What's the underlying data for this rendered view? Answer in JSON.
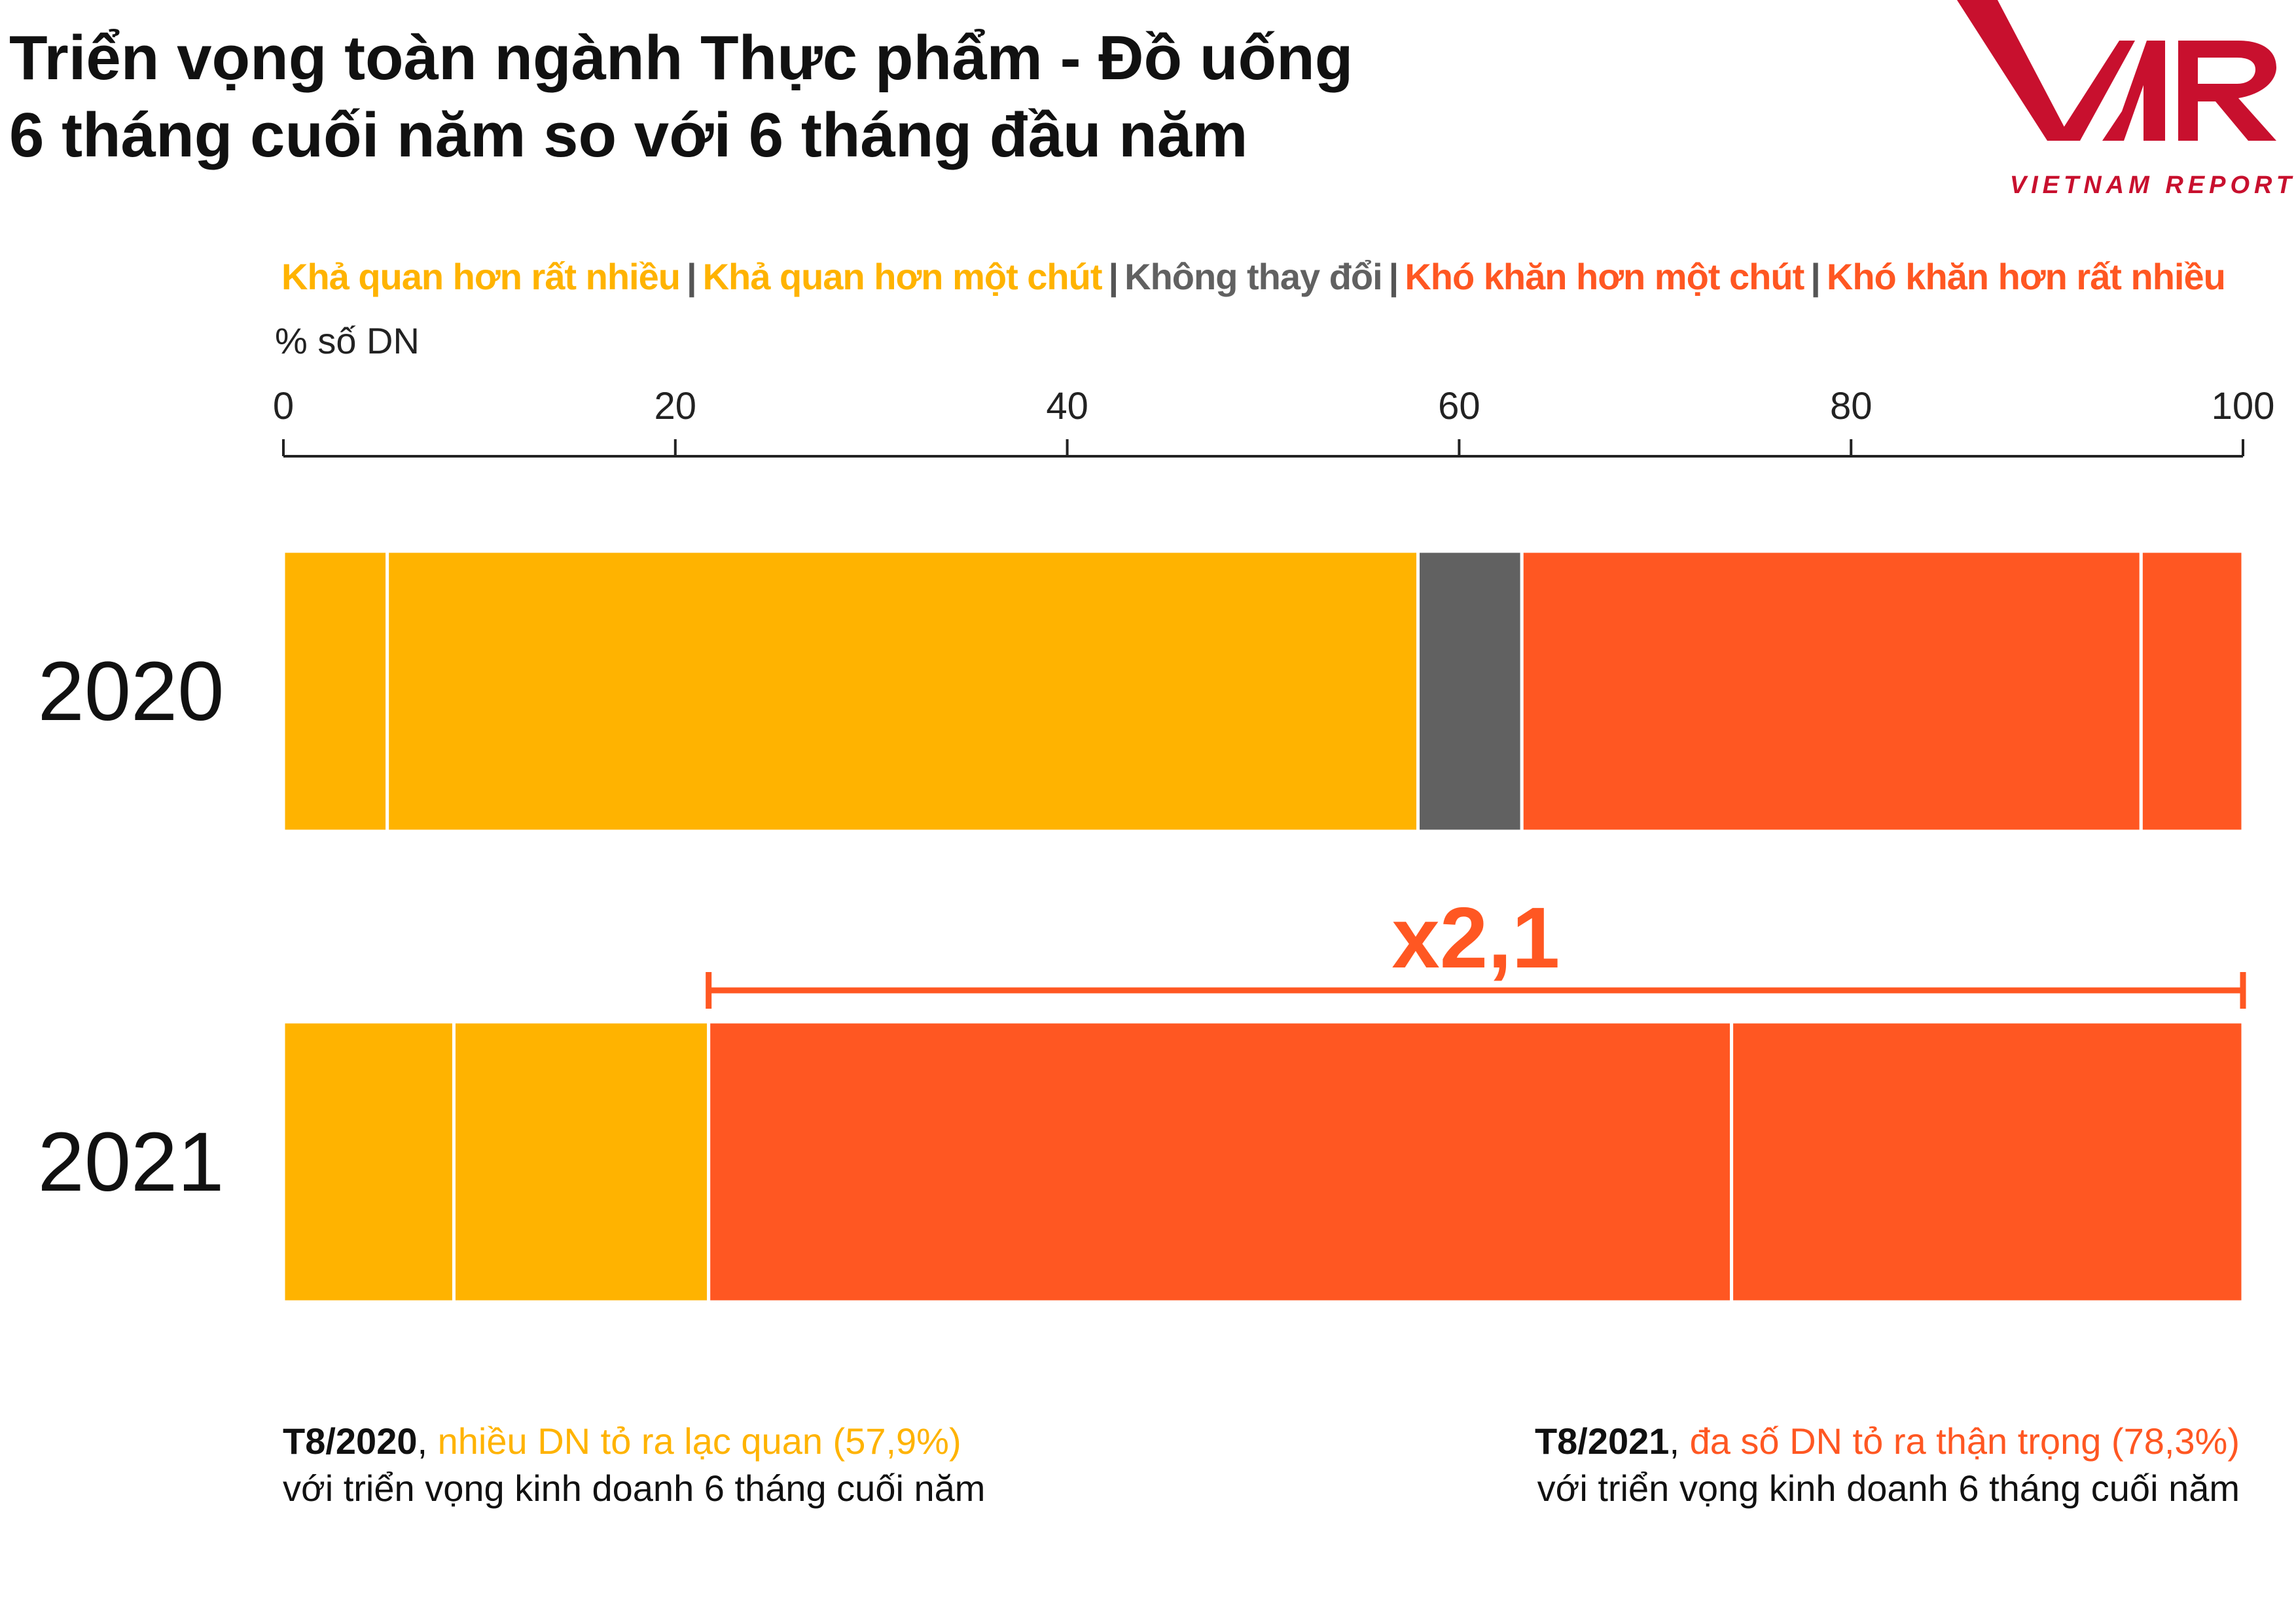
{
  "title_line1": "Triển vọng toàn ngành Thực phẩm - Đồ uống",
  "title_line2": "6 tháng cuối năm so với 6 tháng đầu năm",
  "logo": {
    "mark": "VNR",
    "subtitle": "VIETNAM REPORT",
    "color": "#c8102e"
  },
  "legend_separator": "|",
  "unit_label": "% số DN",
  "notes": {
    "left": {
      "period": "T8/2020",
      "comma": ",",
      "highlight": "nhiều DN tỏ ra lạc quan (57,9%)",
      "line2": "với triển vọng kinh doanh 6 tháng cuối năm",
      "color": "#FFB300"
    },
    "right": {
      "period": "T8/2021",
      "comma": ",",
      "highlight": "đa số DN tỏ ra thận trọng (78,3%)",
      "line2": "với triển vọng kinh doanh 6 tháng cuối năm",
      "color": "#FF5722"
    }
  },
  "chart_data": {
    "type": "bar",
    "orientation": "horizontal",
    "stacked": true,
    "xlim": [
      0,
      100
    ],
    "xticks": [
      0,
      20,
      40,
      60,
      80,
      100
    ],
    "categories": [
      "2020",
      "2021"
    ],
    "series": [
      {
        "name": "Khả quan hơn rất nhiều",
        "color": "#FFB300",
        "values": [
          5.3,
          8.7
        ]
      },
      {
        "name": "Khả quan hơn một chút",
        "color": "#FFB300",
        "values": [
          52.6,
          13.0
        ]
      },
      {
        "name": "Không thay đổi",
        "color": "#616161",
        "values": [
          5.3,
          0
        ]
      },
      {
        "name": "Khó khăn hơn một chút",
        "color": "#FF5722",
        "values": [
          31.6,
          52.2
        ]
      },
      {
        "name": "Khó khăn hơn rất nhiều",
        "color": "#FF5722",
        "values": [
          5.2,
          26.1
        ]
      }
    ],
    "annotation": {
      "text": "x2,1",
      "from": 21.7,
      "to": 100,
      "color": "#FF5722"
    }
  }
}
